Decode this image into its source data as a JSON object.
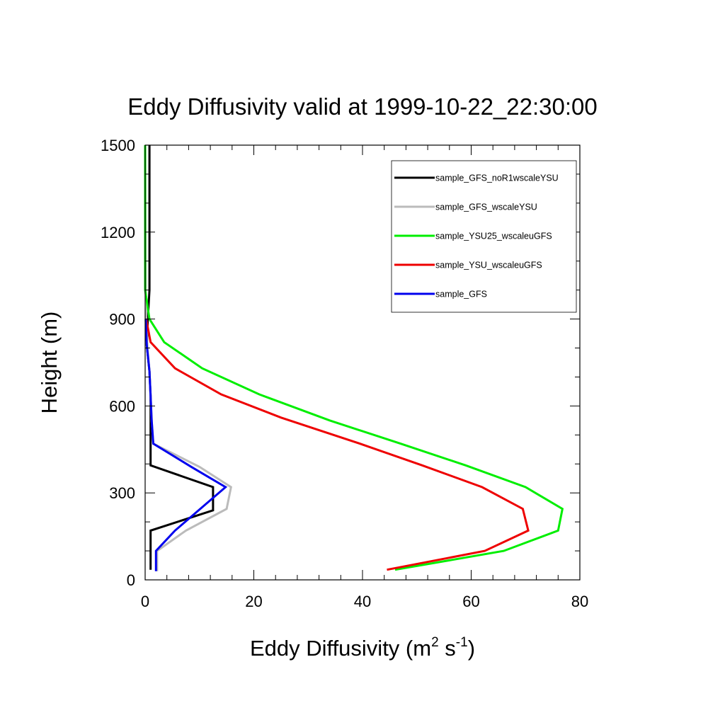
{
  "chart_data": {
    "type": "line",
    "title": "Eddy Diffusivity valid at 1999-10-22_22:30:00",
    "xlabel": "Eddy Diffusivity (m",
    "xlabel_units": {
      "sup1": "2",
      "mid": " s",
      "sup2": "-1",
      "end": ")"
    },
    "ylabel": "Height (m)",
    "xlim": [
      0,
      80
    ],
    "ylim": [
      0,
      1500
    ],
    "xticks": [
      0,
      20,
      40,
      60,
      80
    ],
    "yticks": [
      0,
      300,
      600,
      900,
      1200,
      1500
    ],
    "grid": false,
    "legend_position": "top-right",
    "series": [
      {
        "name": "sample_GFS_noR1wscaleYSU",
        "color": "#000000",
        "points": [
          [
            1.0,
            35
          ],
          [
            1.0,
            170
          ],
          [
            12.5,
            240
          ],
          [
            12.5,
            320
          ],
          [
            1.0,
            395
          ],
          [
            1.0,
            470
          ],
          [
            1.0,
            550
          ],
          [
            1.0,
            635
          ],
          [
            0.8,
            720
          ],
          [
            0.3,
            810
          ],
          [
            0.5,
            900
          ],
          [
            0.8,
            1000
          ],
          [
            0.8,
            1500
          ]
        ]
      },
      {
        "name": "sample_GFS_wscaleYSU",
        "color": "#bbbbbb",
        "points": [
          [
            2.2,
            30
          ],
          [
            2.2,
            100
          ],
          [
            7.5,
            170
          ],
          [
            15.0,
            245
          ],
          [
            15.8,
            320
          ],
          [
            10.0,
            390
          ],
          [
            1.5,
            470
          ],
          [
            1.2,
            550
          ],
          [
            1.0,
            635
          ],
          [
            0.8,
            720
          ],
          [
            0.4,
            810
          ],
          [
            0.2,
            900
          ],
          [
            0.1,
            1000
          ],
          [
            0.0,
            1500
          ]
        ]
      },
      {
        "name": "sample_YSU25_wscaleuGFS",
        "color": "#00ee00",
        "points": [
          [
            46.0,
            35
          ],
          [
            66.0,
            100
          ],
          [
            76.0,
            170
          ],
          [
            76.8,
            245
          ],
          [
            70.0,
            320
          ],
          [
            59.0,
            395
          ],
          [
            47.0,
            470
          ],
          [
            34.0,
            550
          ],
          [
            21.0,
            640
          ],
          [
            10.5,
            730
          ],
          [
            3.5,
            820
          ],
          [
            0.8,
            900
          ],
          [
            0.0,
            1000
          ],
          [
            0.0,
            1500
          ]
        ]
      },
      {
        "name": "sample_YSU_wscaleuGFS",
        "color": "#ee0000",
        "points": [
          [
            44.5,
            35
          ],
          [
            62.5,
            100
          ],
          [
            70.5,
            170
          ],
          [
            69.5,
            245
          ],
          [
            62.0,
            320
          ],
          [
            51.0,
            395
          ],
          [
            39.5,
            470
          ],
          [
            25.0,
            560
          ],
          [
            14.0,
            640
          ],
          [
            5.5,
            730
          ],
          [
            1.0,
            820
          ],
          [
            0.2,
            900
          ]
        ]
      },
      {
        "name": "sample_GFS",
        "color": "#0000ee",
        "points": [
          [
            2.0,
            30
          ],
          [
            2.0,
            100
          ],
          [
            5.5,
            170
          ],
          [
            14.8,
            320
          ],
          [
            8.5,
            390
          ],
          [
            1.5,
            470
          ],
          [
            1.2,
            550
          ],
          [
            1.0,
            635
          ],
          [
            0.8,
            720
          ],
          [
            0.3,
            810
          ],
          [
            0.1,
            900
          ]
        ]
      }
    ]
  }
}
